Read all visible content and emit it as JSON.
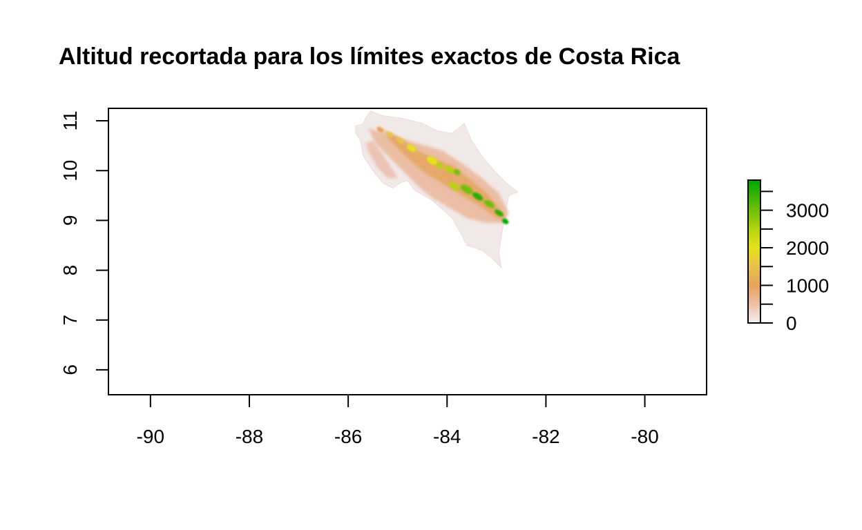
{
  "chart_data": {
    "type": "heatmap",
    "title": "Altitud recortada para los límites exactos de Costa Rica",
    "x_ticks": [
      -90,
      -88,
      -86,
      -84,
      -82,
      -80
    ],
    "x_tick_labels": [
      "-90",
      "-88",
      "-86",
      "-84",
      "-82",
      "-80"
    ],
    "y_ticks": [
      6,
      7,
      8,
      9,
      10,
      11
    ],
    "y_tick_labels": [
      "6",
      "7",
      "8",
      "9",
      "10",
      "11"
    ],
    "xlim": [
      -90.85,
      -78.75
    ],
    "ylim": [
      5.5,
      11.25
    ],
    "legend": {
      "position": "right",
      "range": [
        0,
        3800
      ],
      "ticks": [
        0,
        1000,
        2000,
        3000
      ],
      "tick_labels": [
        "0",
        "1000",
        "2000",
        "3000"
      ],
      "colors": [
        {
          "value": 0,
          "color": "#f2f2f2"
        },
        {
          "value": 500,
          "color": "#edbfa6"
        },
        {
          "value": 1000,
          "color": "#e6a35e"
        },
        {
          "value": 1500,
          "color": "#e8c24a"
        },
        {
          "value": 2000,
          "color": "#e6e21c"
        },
        {
          "value": 2500,
          "color": "#b3d40f"
        },
        {
          "value": 3000,
          "color": "#6fbf0a"
        },
        {
          "value": 3800,
          "color": "#00a600"
        }
      ]
    },
    "land_outline": [
      [
        -85.85,
        10.9
      ],
      [
        -85.7,
        10.93
      ],
      [
        -85.65,
        11.05
      ],
      [
        -85.55,
        11.2
      ],
      [
        -85.3,
        11.1
      ],
      [
        -84.9,
        11.05
      ],
      [
        -84.5,
        10.95
      ],
      [
        -84.2,
        10.8
      ],
      [
        -83.9,
        10.75
      ],
      [
        -83.65,
        10.95
      ],
      [
        -83.5,
        10.6
      ],
      [
        -83.3,
        10.3
      ],
      [
        -83.05,
        10.0
      ],
      [
        -82.8,
        9.75
      ],
      [
        -82.57,
        9.57
      ],
      [
        -82.75,
        9.5
      ],
      [
        -82.8,
        9.25
      ],
      [
        -82.85,
        8.95
      ],
      [
        -82.9,
        8.7
      ],
      [
        -82.95,
        8.35
      ],
      [
        -82.9,
        8.05
      ],
      [
        -83.1,
        8.25
      ],
      [
        -83.3,
        8.4
      ],
      [
        -83.6,
        8.5
      ],
      [
        -83.7,
        8.7
      ],
      [
        -83.9,
        9.05
      ],
      [
        -84.3,
        9.4
      ],
      [
        -84.65,
        9.6
      ],
      [
        -84.8,
        9.8
      ],
      [
        -84.95,
        9.75
      ],
      [
        -85.1,
        9.65
      ],
      [
        -85.3,
        9.75
      ],
      [
        -85.5,
        10.0
      ],
      [
        -85.7,
        10.3
      ],
      [
        -85.75,
        10.6
      ],
      [
        -85.85,
        10.75
      ]
    ],
    "nicoya_mid": [
      [
        -85.65,
        10.55
      ],
      [
        -85.55,
        10.3
      ],
      [
        -85.4,
        10.05
      ],
      [
        -85.2,
        9.85
      ],
      [
        -85.0,
        9.85
      ],
      [
        -85.15,
        10.1
      ],
      [
        -85.35,
        10.4
      ],
      [
        -85.5,
        10.6
      ]
    ],
    "mid_belt": [
      [
        -85.6,
        10.85
      ],
      [
        -85.1,
        10.7
      ],
      [
        -84.6,
        10.55
      ],
      [
        -84.1,
        10.4
      ],
      [
        -83.7,
        10.15
      ],
      [
        -83.3,
        9.85
      ],
      [
        -82.95,
        9.55
      ],
      [
        -82.75,
        9.15
      ],
      [
        -82.85,
        8.95
      ],
      [
        -83.2,
        8.95
      ],
      [
        -83.6,
        9.05
      ],
      [
        -83.95,
        9.25
      ],
      [
        -84.3,
        9.45
      ],
      [
        -84.6,
        9.7
      ],
      [
        -84.9,
        10.0
      ],
      [
        -85.2,
        10.3
      ],
      [
        -85.45,
        10.55
      ]
    ],
    "high_belt": [
      [
        -85.3,
        10.82
      ],
      [
        -85.0,
        10.68
      ],
      [
        -84.6,
        10.4
      ],
      [
        -84.2,
        10.22
      ],
      [
        -83.85,
        10.08
      ],
      [
        -83.5,
        9.8
      ],
      [
        -83.2,
        9.55
      ],
      [
        -82.95,
        9.25
      ],
      [
        -82.8,
        9.0
      ],
      [
        -83.0,
        9.05
      ],
      [
        -83.35,
        9.3
      ],
      [
        -83.7,
        9.5
      ],
      [
        -84.05,
        9.72
      ],
      [
        -84.45,
        9.95
      ],
      [
        -84.85,
        10.3
      ],
      [
        -85.15,
        10.6
      ]
    ],
    "peaks": [
      {
        "lon": -85.35,
        "lat": 10.82,
        "rx": 0.08,
        "ry": 0.05,
        "color": "#e6a35e"
      },
      {
        "lon": -85.15,
        "lat": 10.72,
        "rx": 0.07,
        "ry": 0.05,
        "color": "#e8c24a"
      },
      {
        "lon": -84.95,
        "lat": 10.6,
        "rx": 0.09,
        "ry": 0.05,
        "color": "#e8c24a"
      },
      {
        "lon": -84.72,
        "lat": 10.45,
        "rx": 0.1,
        "ry": 0.06,
        "color": "#e6e21c"
      },
      {
        "lon": -84.3,
        "lat": 10.2,
        "rx": 0.12,
        "ry": 0.07,
        "color": "#e6e21c"
      },
      {
        "lon": -84.15,
        "lat": 10.1,
        "rx": 0.08,
        "ry": 0.05,
        "color": "#b3d40f"
      },
      {
        "lon": -83.95,
        "lat": 10.02,
        "rx": 0.1,
        "ry": 0.06,
        "color": "#b3d40f"
      },
      {
        "lon": -83.8,
        "lat": 9.97,
        "rx": 0.07,
        "ry": 0.05,
        "color": "#6fbf0a"
      },
      {
        "lon": -83.85,
        "lat": 9.68,
        "rx": 0.12,
        "ry": 0.06,
        "color": "#b3d40f"
      },
      {
        "lon": -83.6,
        "lat": 9.62,
        "rx": 0.14,
        "ry": 0.07,
        "color": "#6fbf0a"
      },
      {
        "lon": -83.38,
        "lat": 9.48,
        "rx": 0.12,
        "ry": 0.06,
        "color": "#2fae06"
      },
      {
        "lon": -83.15,
        "lat": 9.33,
        "rx": 0.12,
        "ry": 0.06,
        "color": "#6fbf0a"
      },
      {
        "lon": -82.95,
        "lat": 9.15,
        "rx": 0.1,
        "ry": 0.05,
        "color": "#2fae06"
      },
      {
        "lon": -82.82,
        "lat": 8.98,
        "rx": 0.07,
        "ry": 0.05,
        "color": "#00a600"
      }
    ]
  }
}
